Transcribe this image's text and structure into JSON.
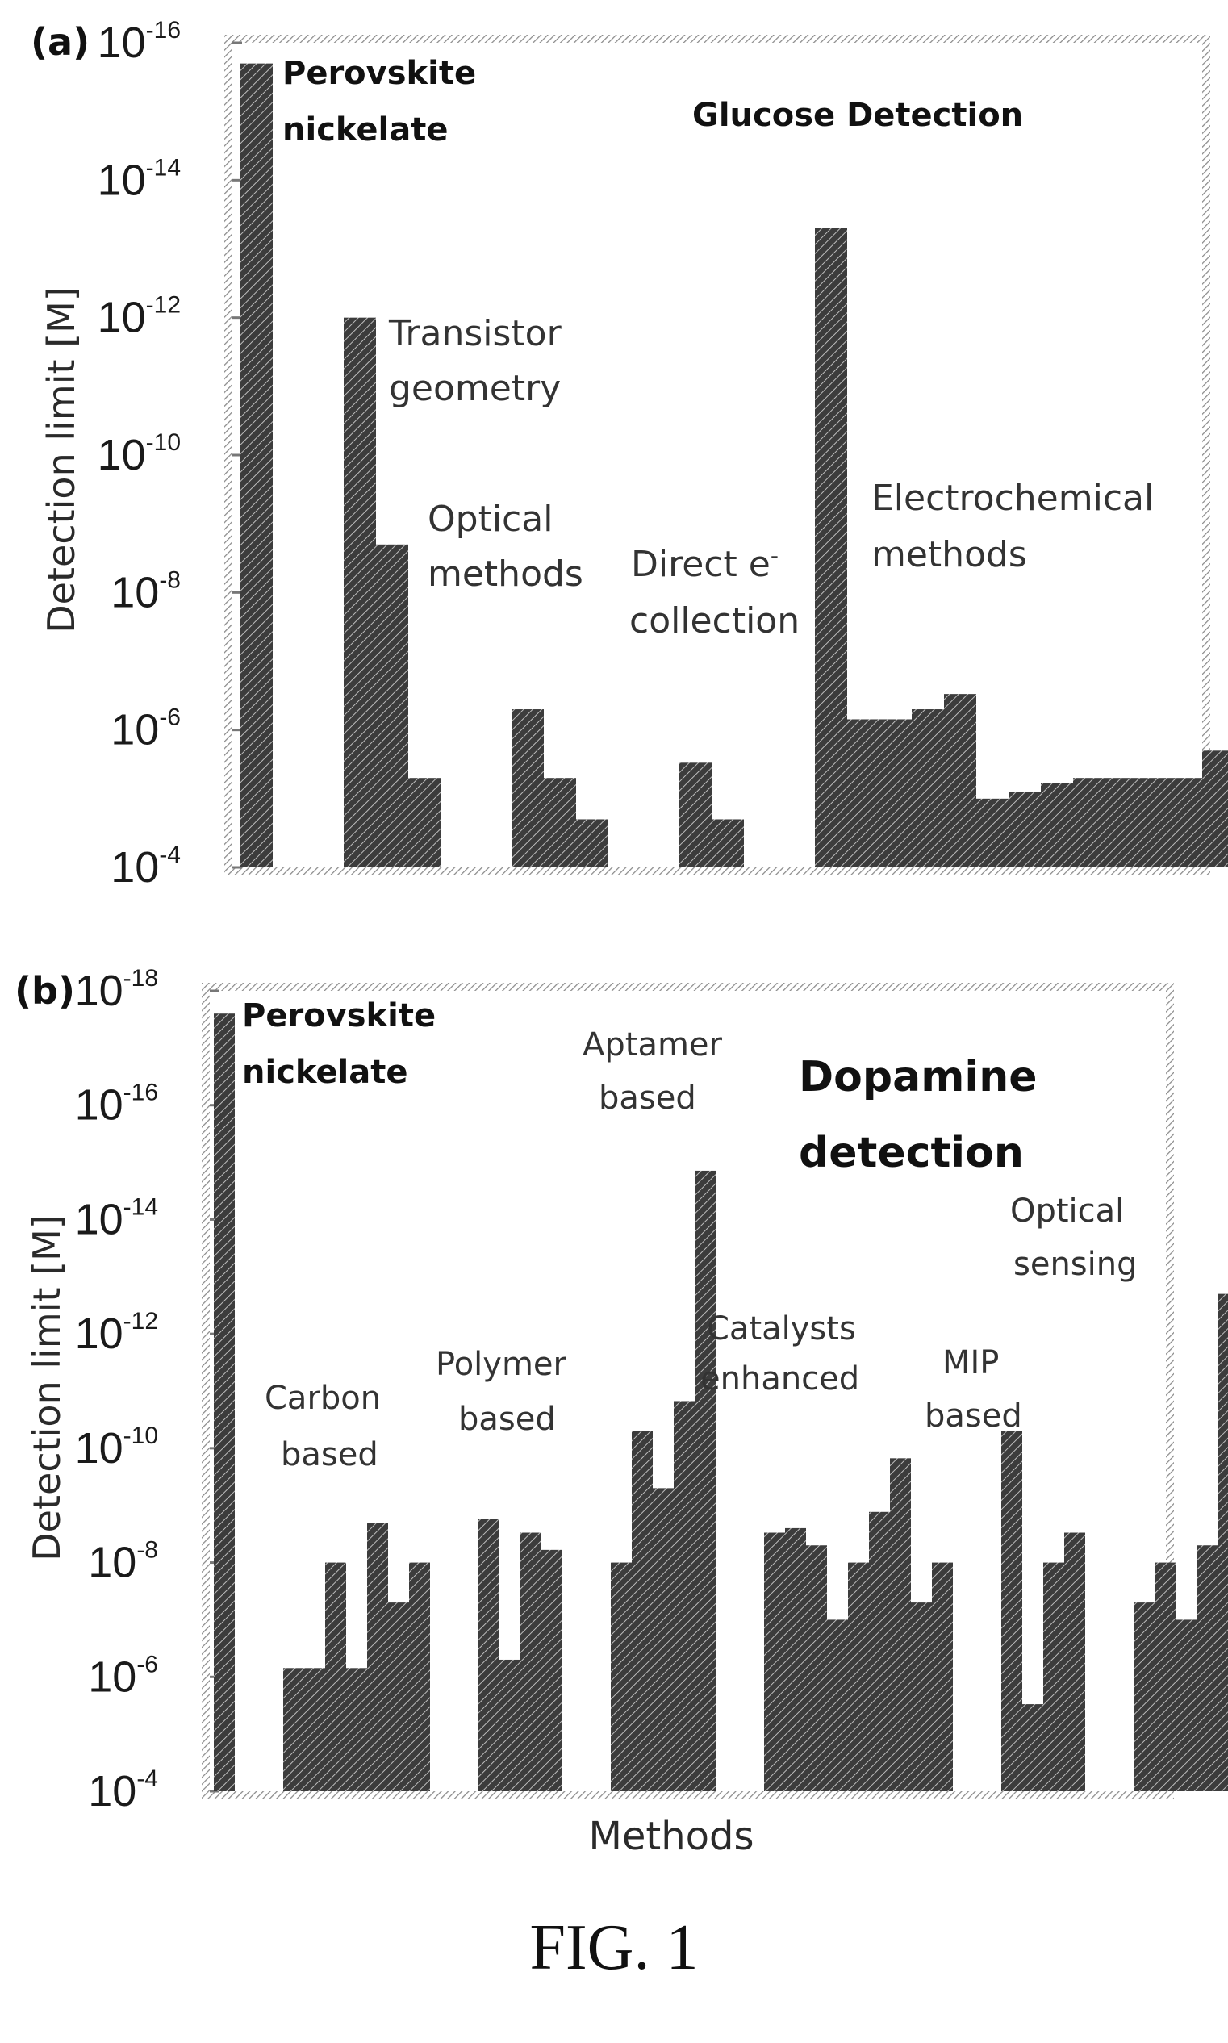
{
  "figure_label": "FIG. 1",
  "chart_data": [
    {
      "panel": "(a)",
      "type": "bar",
      "title": "Glucose Detection",
      "ylabel": "Detection limit [M]",
      "xlabel": "",
      "yscale": "log",
      "y_axis_inverted": true,
      "ylim": [
        "1e-4",
        "1e-16"
      ],
      "yticks": [
        {
          "base": "10",
          "exp": "-16"
        },
        {
          "base": "10",
          "exp": "-14"
        },
        {
          "base": "10",
          "exp": "-12"
        },
        {
          "base": "10",
          "exp": "-10"
        },
        {
          "base": "10",
          "exp": "-8"
        },
        {
          "base": "10",
          "exp": "-6"
        },
        {
          "base": "10",
          "exp": "-4"
        }
      ],
      "groups": [
        {
          "label": "Perovskite nickelate",
          "values": [
            2e-16
          ]
        },
        {
          "label": "Transistor geometry",
          "values": [
            1e-12,
            2e-09,
            5e-06
          ]
        },
        {
          "label": "Optical methods",
          "values": [
            5e-07,
            5e-06,
            2e-05
          ]
        },
        {
          "label": "Direct e⁻ collection",
          "values": [
            3e-06,
            2e-05
          ]
        },
        {
          "label": "Electrochemical methods",
          "values": [
            5e-14,
            7e-07,
            7e-07,
            5e-07,
            3e-07,
            1e-05,
            8e-06,
            6e-06,
            5e-06,
            5e-06,
            5e-06,
            5e-06,
            2e-06,
            8e-05,
            3e-05,
            3e-05
          ]
        }
      ]
    },
    {
      "panel": "(b)",
      "type": "bar",
      "title": "Dopamine detection",
      "ylabel": "Detection limit [M]",
      "xlabel": "Methods",
      "yscale": "log",
      "y_axis_inverted": true,
      "ylim": [
        "1e-4",
        "1e-18"
      ],
      "yticks": [
        {
          "base": "10",
          "exp": "-18"
        },
        {
          "base": "10",
          "exp": "-16"
        },
        {
          "base": "10",
          "exp": "-14"
        },
        {
          "base": "10",
          "exp": "-12"
        },
        {
          "base": "10",
          "exp": "-10"
        },
        {
          "base": "10",
          "exp": "-8"
        },
        {
          "base": "10",
          "exp": "-6"
        },
        {
          "base": "10",
          "exp": "-4"
        }
      ],
      "groups": [
        {
          "label": "Perovskite nickelate",
          "values": [
            2.5e-18
          ]
        },
        {
          "label": "Carbon based",
          "values": [
            7e-07,
            7e-07,
            1e-08,
            7e-07,
            2e-09,
            5e-08,
            1e-08
          ]
        },
        {
          "label": "Polymer based",
          "values": [
            1.7e-09,
            5e-07,
            3e-09,
            6e-09
          ]
        },
        {
          "label": "Aptamer based",
          "values": [
            1e-08,
            5e-11,
            5e-10,
            1.5e-11,
            1.4e-15
          ]
        },
        {
          "label": "Catalysts enhanced",
          "values": [
            3e-09,
            2.5e-09,
            5e-09,
            1e-07,
            1e-08,
            1.3e-09,
            1.5e-10,
            5e-08,
            1e-08
          ]
        },
        {
          "label": "MIP based",
          "values": [
            5e-11,
            3e-06,
            1e-08,
            3e-09
          ]
        },
        {
          "label": "Optical sensing",
          "values": [
            5e-08,
            1e-08,
            1e-07,
            5e-09,
            2e-13
          ]
        }
      ]
    }
  ],
  "annotations": {
    "a": {
      "panel_label": "(a)",
      "title": "Glucose Detection",
      "perovskite_l1": "Perovskite",
      "perovskite_l2": "nickelate",
      "transistor_l1": "Transistor",
      "transistor_l2": "geometry",
      "optical_l1": "Optical",
      "optical_l2": "methods",
      "direct_l1": "Direct e",
      "direct_sup": "-",
      "direct_l2": "collection",
      "electro_l1": "Electrochemical",
      "electro_l2": "methods"
    },
    "b": {
      "panel_label": "(b)",
      "title_l1": "Dopamine",
      "title_l2": "detection",
      "perovskite_l1": "Perovskite",
      "perovskite_l2": "nickelate",
      "carbon_l1": "Carbon",
      "carbon_l2": "based",
      "polymer_l1": "Polymer",
      "polymer_l2": "based",
      "aptamer_l1": "Aptamer",
      "aptamer_l2": "based",
      "catalysts_l1": "Catalysts",
      "catalysts_l2": "enhanced",
      "mip_l1": "MIP",
      "mip_l2": "based",
      "optical_l1": "Optical",
      "optical_l2": "sensing"
    }
  },
  "colors": {
    "bar_fill": "#3c3c3c",
    "bar_hatch": "#bdbdbd",
    "frame": "#9a9a9a"
  }
}
